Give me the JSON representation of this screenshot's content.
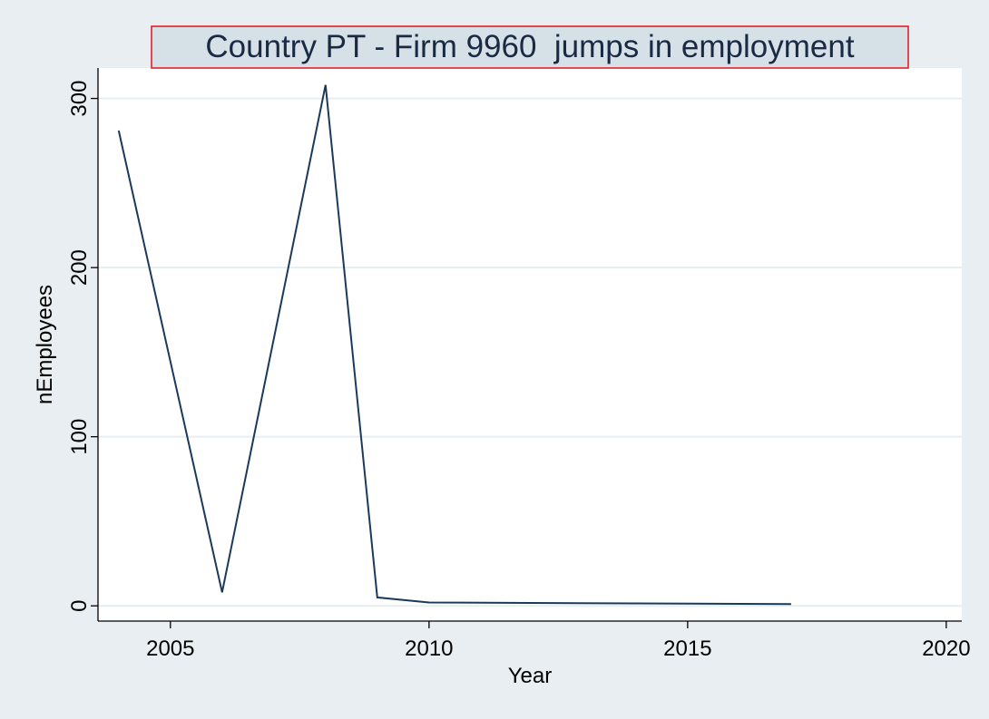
{
  "chart_data": {
    "type": "line",
    "title": "Country PT - Firm 9960  jumps in employment",
    "xlabel": "Year",
    "ylabel": "nEmployees",
    "xlim": [
      2003.6,
      2020.3
    ],
    "ylim": [
      -9,
      318
    ],
    "x_ticks": [
      2005,
      2010,
      2015,
      2020
    ],
    "y_ticks": [
      0,
      100,
      200,
      300
    ],
    "grid": true,
    "series": [
      {
        "x": [
          2004,
          2006,
          2008,
          2009,
          2010,
          2017
        ],
        "values": [
          281,
          8,
          308,
          5,
          2,
          1
        ]
      }
    ],
    "colors": {
      "line": "#1a3a5c",
      "title_border": "#e8111b",
      "title_fill": "#d6e1e7",
      "background": "#e8eef1"
    }
  }
}
